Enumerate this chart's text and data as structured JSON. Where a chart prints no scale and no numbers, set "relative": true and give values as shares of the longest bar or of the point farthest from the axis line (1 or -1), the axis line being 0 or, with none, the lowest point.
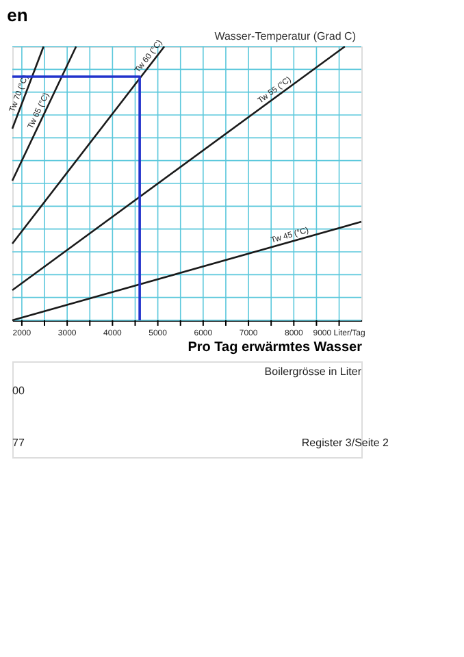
{
  "chart_data": {
    "type": "line",
    "title": "en",
    "subtitle": "Wasser-Temperatur (Grad C)",
    "relative": true,
    "xlabel": "Pro Tag erwärmtes Wasser",
    "xlim": [
      1790,
      9490
    ],
    "xticks": [
      2000,
      {
        "value": 2500,
        "label": null
      },
      3000,
      {
        "value": 3500,
        "label": null
      },
      4000,
      {
        "value": 4500,
        "label": null
      },
      5000,
      {
        "value": 5500,
        "label": null
      },
      6000,
      {
        "value": 6500,
        "label": null
      },
      7000,
      {
        "value": 7500,
        "label": null
      },
      8000,
      {
        "value": 8500,
        "label": null
      },
      {
        "value": 9000,
        "label": "9000 Liter/Tag"
      }
    ],
    "grid": true,
    "marker": "none",
    "line_style": "solid",
    "series": [
      {
        "name": "Tw 45 (°C)",
        "color": "#1a1a1a",
        "x": [
          1790,
          9490
        ],
        "values": [
          0,
          0.36
        ]
      },
      {
        "name": "Tw 55 (°C)",
        "color": "#1a1a1a",
        "x": [
          1790,
          9125
        ],
        "values": [
          0.11,
          1
        ]
      },
      {
        "name": "Tw 60 (°C)",
        "color": "#1a1a1a",
        "x": [
          1790,
          5143
        ],
        "values": [
          0.28,
          1
        ]
      },
      {
        "name": "Tw 65 (°C)",
        "color": "#1a1a1a",
        "x": [
          1790,
          3197
        ],
        "values": [
          0.51,
          1
        ]
      },
      {
        "name": "Tw 70 (°C)",
        "color": "#1a1a1a",
        "x": [
          1790,
          2479
        ],
        "values": [
          0.7,
          1
        ]
      },
      {
        "color": "#2233cc",
        "x": [
          1790,
          4600,
          4600
        ],
        "values": [
          0.89,
          0.89,
          0
        ]
      }
    ],
    "annotations": [
      "Boilergrösse in Liter",
      "00",
      "77",
      "Register 3/Seite 2"
    ]
  }
}
